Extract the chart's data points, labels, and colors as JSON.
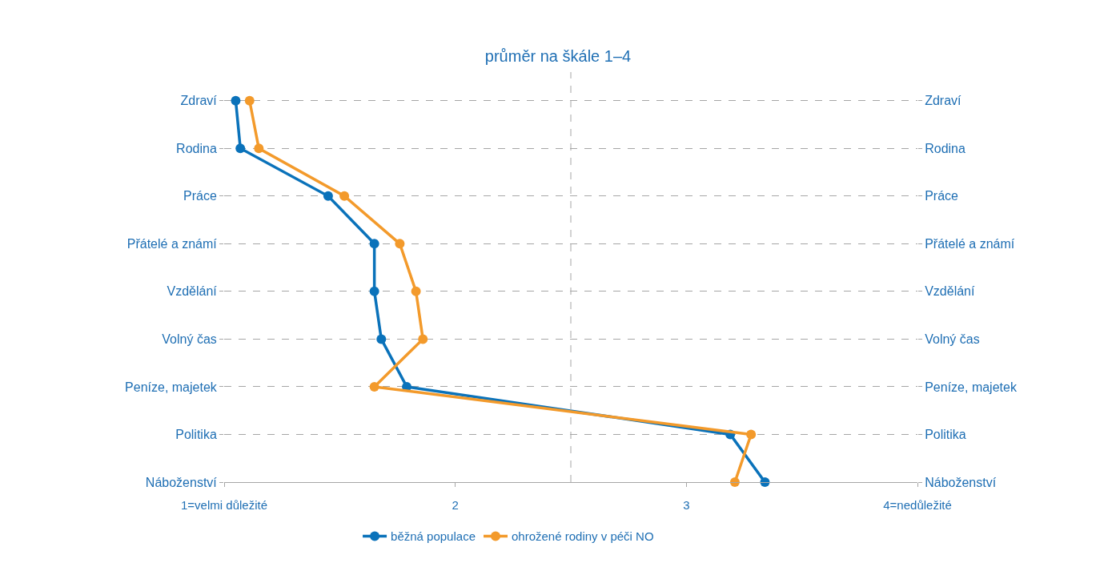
{
  "chart_data": {
    "type": "line",
    "title": "průměr na škále 1–4",
    "orientation": "horizontal",
    "categories": [
      "Zdraví",
      "Rodina",
      "Práce",
      "Přátelé a známí",
      "Vzdělání",
      "Volný čas",
      "Peníze, majetek",
      "Politika",
      "Náboženství"
    ],
    "series": [
      {
        "name": "běžná populace",
        "color": "#0a72ba",
        "values": [
          1.05,
          1.07,
          1.45,
          1.65,
          1.65,
          1.68,
          1.79,
          3.19,
          3.34
        ]
      },
      {
        "name": "ohrožené rodiny v péči NO",
        "color": "#f39a2b",
        "values": [
          1.11,
          1.15,
          1.52,
          1.76,
          1.83,
          1.86,
          1.65,
          3.28,
          3.21
        ]
      }
    ],
    "xlim": [
      1,
      4
    ],
    "xticks": [
      {
        "value": 1,
        "label": "1=velmi důležité"
      },
      2,
      3,
      {
        "value": 4,
        "label": "4=nedůležité"
      }
    ],
    "ref_lines": [
      {
        "axis": "x",
        "value": 2.5,
        "color": "#a6a6a6",
        "line_style": "dashed"
      }
    ],
    "grid": "y",
    "legend": "bottom",
    "marker": "circle",
    "line_style": "solid"
  }
}
